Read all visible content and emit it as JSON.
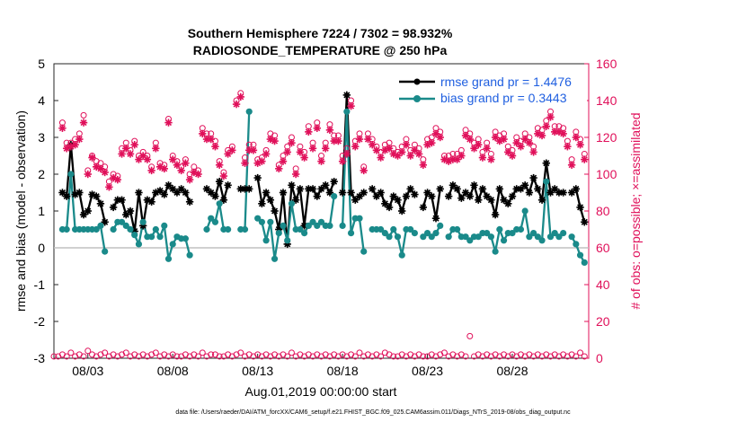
{
  "chart_data": {
    "type": "line",
    "title": "Southern Hemisphere 7224 / 7302 = 98.932%",
    "subtitle": "RADIOSONDE_TEMPERATURE @ 250 hPa",
    "ylabel": "rmse and bias (model - observation)",
    "y2label": "# of obs: o=possible; ×=assimilated",
    "xlabel": "Aug.01,2019 00:00:00 start",
    "footnote": "data file: /Users/raeder/DAI/ATM_forcXX/CAM6_setup/f.e21.FHIST_BGC.f09_025.CAM6assim.011/Diags_NTrS_2019-08/obs_diag_output.nc",
    "ylim": [
      -3,
      5
    ],
    "y2lim": [
      0,
      160
    ],
    "xlim": [
      0,
      31.5
    ],
    "yticks": [
      "-3",
      "-2",
      "-1",
      "0",
      "1",
      "2",
      "3",
      "4",
      "5"
    ],
    "y2ticks": [
      "0",
      "20",
      "40",
      "60",
      "80",
      "100",
      "120",
      "140",
      "160"
    ],
    "xtick_labels": [
      {
        "day": 2,
        "label": "08/03"
      },
      {
        "day": 7,
        "label": "08/08"
      },
      {
        "day": 12,
        "label": "08/13"
      },
      {
        "day": 17,
        "label": "08/18"
      },
      {
        "day": 22,
        "label": "08/23"
      },
      {
        "day": 27,
        "label": "08/28"
      }
    ],
    "x_days": [
      0.0,
      0.25,
      0.5,
      0.75,
      1.0,
      1.25,
      1.5,
      1.75,
      2.0,
      2.25,
      2.5,
      2.75,
      3.0,
      3.25,
      3.5,
      3.75,
      4.0,
      4.25,
      4.5,
      4.75,
      5.0,
      5.25,
      5.5,
      5.75,
      6.0,
      6.25,
      6.5,
      6.75,
      7.0,
      7.25,
      7.5,
      7.75,
      8.0,
      8.25,
      8.5,
      8.75,
      9.0,
      9.25,
      9.5,
      9.75,
      10.0,
      10.25,
      10.5,
      10.75,
      11.0,
      11.25,
      11.5,
      11.75,
      12.0,
      12.25,
      12.5,
      12.75,
      13.0,
      13.25,
      13.5,
      13.75,
      14.0,
      14.25,
      14.5,
      14.75,
      15.0,
      15.25,
      15.5,
      15.75,
      16.0,
      16.25,
      16.5,
      16.75,
      17.0,
      17.25,
      17.5,
      17.75,
      18.0,
      18.25,
      18.5,
      18.75,
      19.0,
      19.25,
      19.5,
      19.75,
      20.0,
      20.25,
      20.5,
      20.75,
      21.0,
      21.25,
      21.5,
      21.75,
      22.0,
      22.25,
      22.5,
      22.75,
      23.0,
      23.25,
      23.5,
      23.75,
      24.0,
      24.25,
      24.5,
      24.75,
      25.0,
      25.25,
      25.5,
      25.75,
      26.0,
      26.25,
      26.5,
      26.75,
      27.0,
      27.25,
      27.5,
      27.75,
      28.0,
      28.25,
      28.5,
      28.75,
      29.0,
      29.25,
      29.5,
      29.75,
      30.0,
      30.25,
      30.5,
      30.75,
      31.0,
      31.25
    ],
    "series": [
      {
        "name": "rmse",
        "legend": "rmse grand pr = 1.4476",
        "color": "#000000",
        "axis": "left",
        "values": [
          null,
          null,
          1.5,
          1.4,
          2.8,
          1.45,
          1.5,
          0.9,
          1.0,
          1.45,
          1.4,
          1.2,
          0.7,
          null,
          1.1,
          1.3,
          1.3,
          0.9,
          1.0,
          0.45,
          1.5,
          0.6,
          1.3,
          1.25,
          1.5,
          1.55,
          1.45,
          1.7,
          1.6,
          1.5,
          1.6,
          1.5,
          1.25,
          null,
          null,
          null,
          1.6,
          1.5,
          1.4,
          1.8,
          1.3,
          1.7,
          null,
          null,
          1.6,
          1.6,
          1.6,
          null,
          1.9,
          1.2,
          1.5,
          1.3,
          1.0,
          0.5,
          1.5,
          0.1,
          1.7,
          1.3,
          1.6,
          0.6,
          1.6,
          1.6,
          1.4,
          1.6,
          1.7,
          1.5,
          1.8,
          null,
          1.5,
          4.15,
          1.5,
          1.3,
          1.4,
          1.5,
          null,
          1.6,
          1.4,
          1.5,
          1.2,
          1.1,
          1.4,
          1.3,
          1.0,
          1.4,
          1.6,
          1.45,
          null,
          1.1,
          1.5,
          1.4,
          0.8,
          1.6,
          null,
          1.4,
          1.7,
          1.6,
          1.35,
          1.5,
          1.4,
          1.7,
          1.3,
          1.6,
          1.4,
          1.3,
          0.9,
          1.6,
          1.3,
          1.2,
          1.4,
          1.6,
          1.6,
          1.7,
          1.5,
          1.9,
          1.6,
          1.3,
          2.3,
          1.5,
          1.6,
          1.5,
          1.5,
          null,
          1.5,
          1.6,
          1.1,
          0.7
        ]
      },
      {
        "name": "bias",
        "legend": "bias grand pr = 0.3443",
        "color": "#1a8a8a",
        "axis": "left",
        "values": [
          null,
          null,
          0.5,
          0.5,
          2.0,
          0.5,
          0.5,
          0.5,
          0.5,
          0.5,
          0.5,
          0.6,
          -0.1,
          null,
          0.5,
          0.7,
          0.7,
          0.6,
          0.5,
          0.35,
          0.1,
          0.7,
          0.3,
          0.3,
          0.5,
          0.3,
          0.6,
          -0.3,
          0.1,
          0.3,
          0.25,
          0.25,
          -0.2,
          null,
          null,
          null,
          0.5,
          0.8,
          0.7,
          1.2,
          0.5,
          0.5,
          null,
          null,
          0.5,
          0.5,
          3.7,
          null,
          0.8,
          0.7,
          0.2,
          0.7,
          -0.3,
          0.4,
          0.6,
          0.2,
          1.2,
          0.5,
          0.5,
          0.4,
          0.6,
          0.7,
          0.6,
          0.7,
          0.6,
          0.6,
          1.4,
          null,
          0.6,
          3.7,
          0.4,
          0.8,
          0.8,
          -0.1,
          null,
          0.5,
          0.5,
          0.5,
          0.4,
          0.3,
          0.5,
          0.3,
          -0.2,
          0.5,
          0.5,
          0.4,
          null,
          0.3,
          0.4,
          0.3,
          0.4,
          0.6,
          null,
          0.3,
          0.5,
          0.5,
          0.3,
          0.3,
          0.2,
          0.3,
          0.3,
          0.4,
          0.4,
          0.3,
          -0.1,
          0.5,
          0.2,
          0.4,
          0.4,
          0.5,
          0.5,
          1.0,
          0.3,
          0.4,
          0.3,
          0.2,
          1.8,
          0.3,
          0.4,
          0.3,
          0.4,
          null,
          0.3,
          0.1,
          -0.2,
          -0.4
        ]
      },
      {
        "name": "possible",
        "legend": "",
        "color": "#e0105a",
        "axis": "right",
        "marker": "o",
        "values": [
          null,
          null,
          128,
          117,
          117,
          119,
          122,
          132,
          102,
          110,
          107,
          106,
          104,
          96,
          100,
          99,
          114,
          117,
          113,
          118,
          110,
          112,
          110,
          104,
          117,
          106,
          105,
          130,
          110,
          107,
          104,
          108,
          100,
          104,
          102,
          125,
          122,
          122,
          118,
          107,
          101,
          113,
          115,
          140,
          144,
          109,
          116,
          116,
          108,
          109,
          113,
          122,
          121,
          105,
          110,
          115,
          120,
          103,
          115,
          112,
          126,
          117,
          128,
          110,
          117,
          127,
          121,
          121,
          110,
          114,
          140,
          118,
          122,
          104,
          122,
          119,
          115,
          112,
          116,
          117,
          114,
          112,
          115,
          119,
          113,
          116,
          114,
          108,
          119,
          120,
          125,
          123,
          110,
          110,
          111,
          111,
          113,
          124,
          122,
          117,
          119,
          112,
          117,
          111,
          123,
          121,
          122,
          115,
          113,
          120,
          118,
          122,
          120,
          115,
          125,
          124,
          129,
          134,
          126,
          126,
          125,
          118,
          108,
          123,
          119,
          111
        ]
      },
      {
        "name": "assimilated",
        "legend": "",
        "color": "#e0105a",
        "axis": "right",
        "marker": "*",
        "values": [
          null,
          null,
          125,
          114,
          115,
          116,
          119,
          128,
          100,
          109,
          104,
          103,
          101,
          93,
          98,
          97,
          111,
          114,
          111,
          116,
          108,
          110,
          108,
          102,
          114,
          104,
          103,
          128,
          108,
          105,
          102,
          106,
          97,
          101,
          100,
          122,
          119,
          119,
          115,
          105,
          99,
          111,
          113,
          138,
          142,
          106,
          113,
          113,
          106,
          107,
          111,
          119,
          118,
          103,
          107,
          112,
          117,
          100,
          112,
          109,
          123,
          114,
          125,
          107,
          114,
          124,
          118,
          118,
          107,
          111,
          137,
          115,
          119,
          102,
          119,
          116,
          113,
          109,
          113,
          114,
          111,
          110,
          112,
          116,
          110,
          113,
          111,
          105,
          116,
          117,
          122,
          120,
          108,
          107,
          108,
          108,
          110,
          121,
          119,
          114,
          116,
          109,
          114,
          108,
          120,
          118,
          119,
          112,
          110,
          117,
          115,
          119,
          117,
          112,
          122,
          121,
          126,
          131,
          123,
          123,
          122,
          115,
          105,
          120,
          116,
          108
        ]
      },
      {
        "name": "possible-low",
        "legend": "",
        "color": "#e0105a",
        "axis": "right",
        "marker": "o",
        "values": [
          1,
          1,
          2,
          1,
          3,
          1,
          2,
          1,
          4,
          2,
          1,
          2,
          3,
          1,
          2,
          1,
          2,
          3,
          1,
          2,
          1,
          2,
          1,
          2,
          3,
          1,
          2,
          1,
          2,
          1,
          1,
          2,
          1,
          2,
          1,
          3,
          1,
          2,
          2,
          1,
          1,
          2,
          1,
          2,
          3,
          1,
          2,
          1,
          2,
          1,
          2,
          1,
          2,
          1,
          2,
          1,
          3,
          1,
          2,
          1,
          2,
          1,
          2,
          1,
          2,
          1,
          2,
          1,
          2,
          1,
          2,
          1,
          3,
          1,
          2,
          1,
          2,
          1,
          3,
          2,
          1,
          1,
          2,
          1,
          2,
          1,
          2,
          1,
          1,
          2,
          1,
          2,
          3,
          1,
          2,
          1,
          2,
          1,
          12,
          1,
          2,
          1,
          2,
          1,
          2,
          1,
          2,
          1,
          2,
          1,
          2,
          1,
          2,
          1,
          2,
          1,
          2,
          1,
          2,
          1,
          2,
          1,
          2,
          1,
          3,
          1
        ]
      }
    ],
    "zero_line": true
  }
}
